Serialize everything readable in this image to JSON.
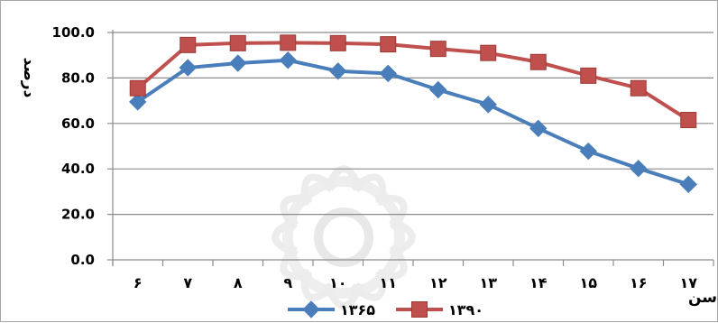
{
  "chart_data": {
    "type": "line",
    "xlabel": "سن",
    "ylabel": "درصد",
    "categories": [
      "۶",
      "۷",
      "۸",
      "۹",
      "۱۰",
      "۱۱",
      "۱۲",
      "۱۳",
      "۱۴",
      "۱۵",
      "۱۶",
      "۱۷"
    ],
    "ylim": [
      0,
      100
    ],
    "yticks": [
      "0.0",
      "20.0",
      "40.0",
      "60.0",
      "80.0",
      "100.0"
    ],
    "grid": "horizontal",
    "legend_position": "bottom",
    "series": [
      {
        "name": "۱۳۶۵",
        "color": "#4a7ebb",
        "marker": "diamond",
        "values": [
          69.5,
          84.5,
          86.5,
          87.8,
          83,
          82,
          74.8,
          68.3,
          57.8,
          47.8,
          40.2,
          33.2
        ]
      },
      {
        "name": "۱۳۹۰",
        "color": "#c0504d",
        "marker": "square",
        "values": [
          75.5,
          94.5,
          95.3,
          95.5,
          95.3,
          94.8,
          92.8,
          91.0,
          87.0,
          81.0,
          75.5,
          61.5
        ]
      }
    ]
  }
}
